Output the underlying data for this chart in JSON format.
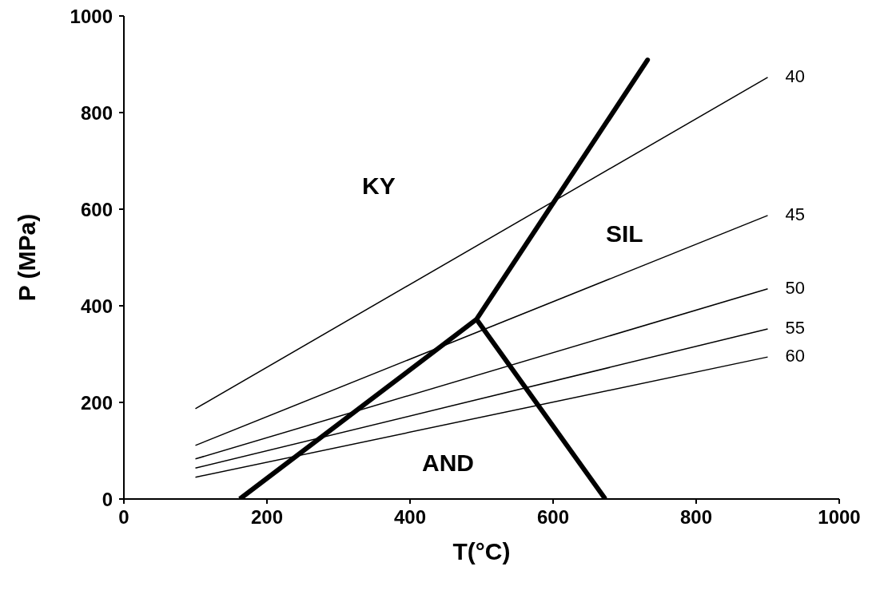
{
  "chart_data": {
    "type": "line",
    "xlabel": "T(°C)",
    "ylabel": "P (MPa)",
    "xlim": [
      0,
      1000
    ],
    "ylim": [
      0,
      1000
    ],
    "xticks": [
      0,
      200,
      400,
      600,
      800,
      1000
    ],
    "yticks": [
      0,
      200,
      400,
      600,
      800,
      1000
    ],
    "grid": false,
    "legend": false,
    "marker": "none",
    "line_style": "solid",
    "series": [
      {
        "color": "#000000",
        "x": [
          162,
          493,
          732,
          493,
          673
        ],
        "values": [
          0,
          372,
          909,
          372,
          0
        ]
      },
      {
        "name": "40",
        "color": "#000000",
        "x": [
          100,
          900
        ],
        "values": [
          187,
          873
        ]
      },
      {
        "name": "45",
        "color": "#000000",
        "x": [
          100,
          900
        ],
        "values": [
          111,
          587
        ]
      },
      {
        "name": "50",
        "color": "#000000",
        "x": [
          100,
          900
        ],
        "values": [
          83,
          435
        ]
      },
      {
        "name": "55",
        "color": "#000000",
        "x": [
          100,
          900
        ],
        "values": [
          64,
          352
        ]
      },
      {
        "name": "60",
        "color": "#000000",
        "x": [
          100,
          900
        ],
        "values": [
          45,
          294
        ]
      }
    ],
    "annotations": [
      "KY",
      "SIL",
      "AND"
    ]
  }
}
